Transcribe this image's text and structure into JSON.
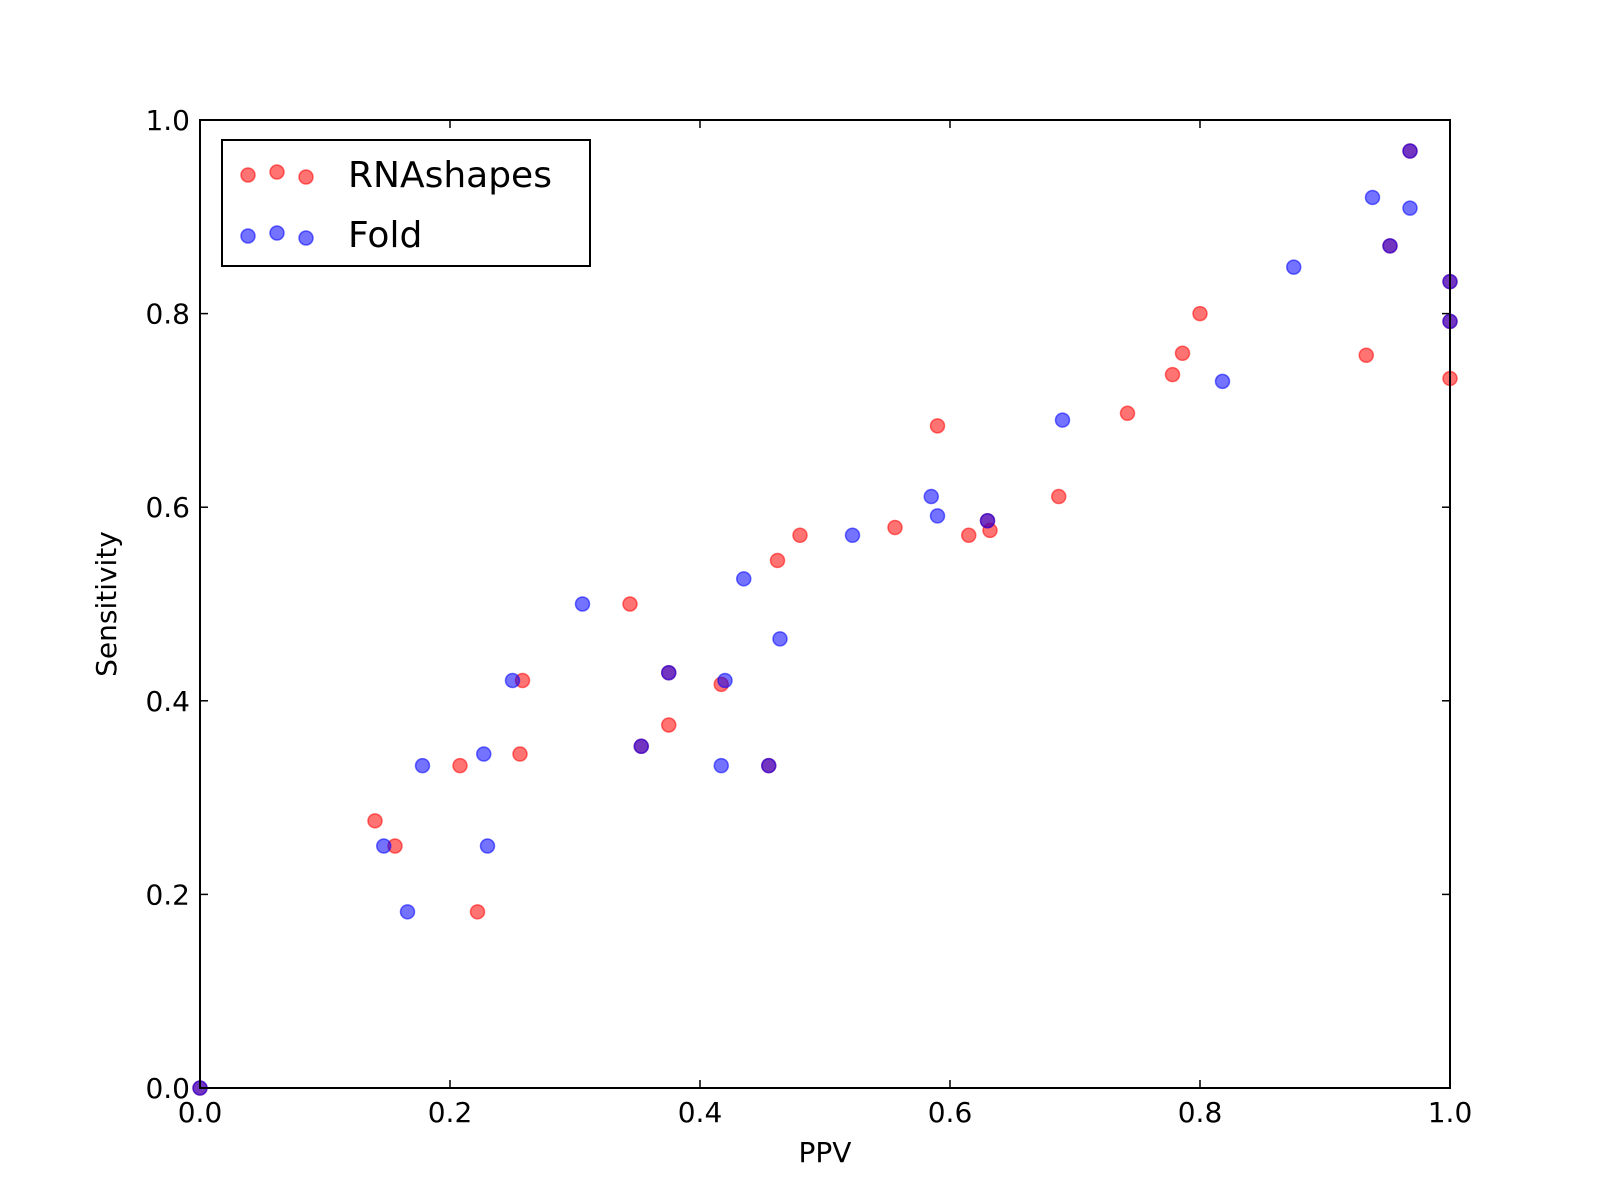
{
  "chart_data": {
    "type": "scatter",
    "title": "",
    "xlabel": "PPV",
    "ylabel": "Sensitivity",
    "xlim": [
      0.0,
      1.0
    ],
    "ylim": [
      0.0,
      1.0
    ],
    "xticks": [
      "0.0",
      "0.2",
      "0.4",
      "0.6",
      "0.8",
      "1.0"
    ],
    "yticks": [
      "0.0",
      "0.2",
      "0.4",
      "0.6",
      "0.8",
      "1.0"
    ],
    "grid": false,
    "legend_position": "top-left",
    "series": [
      {
        "name": "RNAshapes",
        "color": "#ff0000",
        "points": [
          [
            0.0,
            0.0
          ],
          [
            0.14,
            0.276
          ],
          [
            0.156,
            0.25
          ],
          [
            0.208,
            0.333
          ],
          [
            0.222,
            0.182
          ],
          [
            0.256,
            0.345
          ],
          [
            0.258,
            0.421
          ],
          [
            0.344,
            0.5
          ],
          [
            0.353,
            0.353
          ],
          [
            0.375,
            0.375
          ],
          [
            0.375,
            0.429
          ],
          [
            0.417,
            0.417
          ],
          [
            0.455,
            0.333
          ],
          [
            0.462,
            0.545
          ],
          [
            0.48,
            0.571
          ],
          [
            0.556,
            0.579
          ],
          [
            0.59,
            0.684
          ],
          [
            0.615,
            0.571
          ],
          [
            0.63,
            0.586
          ],
          [
            0.632,
            0.576
          ],
          [
            0.687,
            0.611
          ],
          [
            0.742,
            0.697
          ],
          [
            0.778,
            0.737
          ],
          [
            0.786,
            0.759
          ],
          [
            0.8,
            0.8
          ],
          [
            0.933,
            0.757
          ],
          [
            0.952,
            0.87
          ],
          [
            0.968,
            0.968
          ],
          [
            1.0,
            0.733
          ],
          [
            1.0,
            0.792
          ],
          [
            1.0,
            0.833
          ]
        ]
      },
      {
        "name": "Fold",
        "color": "#0000ff",
        "points": [
          [
            0.0,
            0.0
          ],
          [
            0.147,
            0.25
          ],
          [
            0.166,
            0.182
          ],
          [
            0.178,
            0.333
          ],
          [
            0.227,
            0.345
          ],
          [
            0.23,
            0.25
          ],
          [
            0.25,
            0.421
          ],
          [
            0.306,
            0.5
          ],
          [
            0.353,
            0.353
          ],
          [
            0.375,
            0.429
          ],
          [
            0.417,
            0.333
          ],
          [
            0.42,
            0.421
          ],
          [
            0.435,
            0.526
          ],
          [
            0.455,
            0.333
          ],
          [
            0.464,
            0.464
          ],
          [
            0.522,
            0.571
          ],
          [
            0.585,
            0.611
          ],
          [
            0.59,
            0.591
          ],
          [
            0.63,
            0.586
          ],
          [
            0.69,
            0.69
          ],
          [
            0.818,
            0.73
          ],
          [
            0.875,
            0.848
          ],
          [
            0.938,
            0.92
          ],
          [
            0.952,
            0.87
          ],
          [
            0.968,
            0.909
          ],
          [
            0.968,
            0.968
          ],
          [
            1.0,
            0.792
          ],
          [
            1.0,
            0.833
          ]
        ]
      }
    ]
  }
}
